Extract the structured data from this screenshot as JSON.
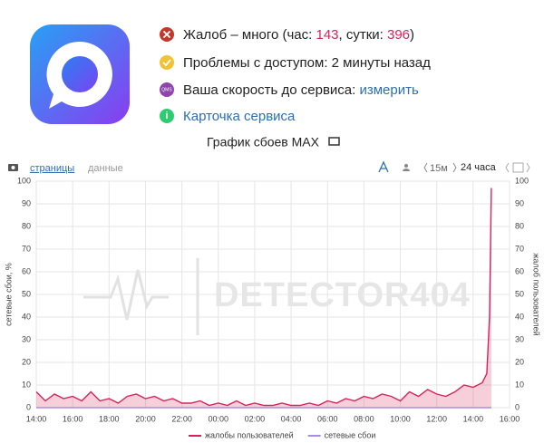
{
  "header": {
    "status": [
      {
        "prefix": "Жалоб – много (час: ",
        "hour": 143,
        "mid": ", сутки: ",
        "day": 396,
        "suffix": ")"
      },
      {
        "text": "Проблемы с доступом: 2 минуты назад"
      },
      {
        "text": "Ваша скорость до сервиса: ",
        "link": "измерить"
      },
      {
        "link": "Карточка сервиса"
      }
    ]
  },
  "toolbar": {
    "pages": "страницы",
    "data": "данные",
    "short": "15м",
    "long": "24 часа"
  },
  "chart_data": {
    "type": "line",
    "title": "График сбоев MAX",
    "watermark": "DETECTOR404",
    "y_label": "сетевые сбои, %",
    "y2_label": "жалоб пользователей",
    "x": [
      0,
      0.5,
      1,
      1.5,
      2,
      2.5,
      3,
      3.5,
      4,
      4.5,
      5,
      5.5,
      6,
      6.5,
      7,
      7.5,
      8,
      8.5,
      9,
      9.5,
      10,
      10.5,
      11,
      11.5,
      12,
      12.5,
      13,
      13.5,
      14,
      14.5,
      15,
      15.5,
      16,
      16.5,
      17,
      17.5,
      18,
      18.5,
      19,
      19.5,
      20,
      20.5,
      21,
      21.5,
      22,
      22.5,
      23,
      23.5,
      24,
      24.5,
      24.75,
      24.9,
      25
    ],
    "series": [
      {
        "name": "жалобы пользователей",
        "color": "#d6245b",
        "axis": "y2",
        "values": [
          7,
          3,
          6,
          4,
          5,
          3,
          7,
          3,
          4,
          2,
          5,
          6,
          4,
          5,
          3,
          4,
          2,
          2,
          3,
          1,
          2,
          1,
          3,
          1,
          2,
          1,
          1,
          2,
          1,
          1,
          2,
          1,
          3,
          2,
          4,
          3,
          5,
          4,
          6,
          5,
          3,
          7,
          5,
          8,
          6,
          5,
          7,
          10,
          9,
          11,
          15,
          40,
          97
        ]
      },
      {
        "name": "сетевые сбои",
        "color": "#a98ee0",
        "values": [
          0,
          0,
          0,
          0,
          0,
          0,
          0,
          0,
          0,
          0,
          0,
          0,
          0,
          0,
          0,
          0,
          0,
          0,
          0,
          0,
          0,
          0,
          0,
          0,
          0,
          0,
          0,
          0,
          0,
          0,
          0,
          0,
          0,
          0,
          0,
          0,
          0,
          0,
          0,
          0,
          0,
          0,
          0,
          0,
          0,
          0,
          0,
          0,
          0,
          0,
          0,
          0,
          0
        ]
      }
    ],
    "xlim": [
      0,
      26
    ],
    "xticks": [
      {
        "value": 0,
        "label": "14:00"
      },
      {
        "value": 2,
        "label": "16:00"
      },
      {
        "value": 4,
        "label": "18:00"
      },
      {
        "value": 6,
        "label": "20:00"
      },
      {
        "value": 8,
        "label": "22:00"
      },
      {
        "value": 10,
        "label": "00:00"
      },
      {
        "value": 12,
        "label": "02:00"
      },
      {
        "value": 14,
        "label": "04:00"
      },
      {
        "value": 16,
        "label": "06:00"
      },
      {
        "value": 18,
        "label": "08:00"
      },
      {
        "value": 20,
        "label": "10:00"
      },
      {
        "value": 22,
        "label": "12:00"
      },
      {
        "value": 24,
        "label": "14:00"
      },
      {
        "value": 26,
        "label": "16:00"
      }
    ],
    "ylim": [
      0,
      100
    ],
    "yticks": [
      0,
      10,
      20,
      30,
      40,
      50,
      60,
      70,
      80,
      90,
      100
    ],
    "y2lim": [
      0,
      100
    ],
    "y2ticks": [
      0,
      10,
      20,
      30,
      40,
      50,
      60,
      70,
      80,
      90,
      100
    ],
    "grid": true,
    "area": true
  }
}
